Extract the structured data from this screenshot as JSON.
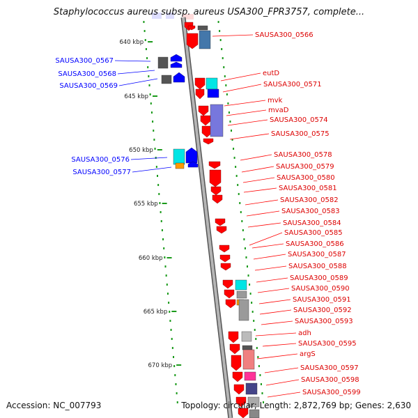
{
  "header": {
    "title": "Staphylococcus aureus subsp. aureus USA300_FPR3757, complete..."
  },
  "footer": {
    "accession": "Accession: NC_007793",
    "topology": "Topology: circular; Length: 2,872,769 bp; Genes: 2,630"
  },
  "colors": {
    "forward": "#ff0000",
    "reverse": "#0000ff",
    "backbone": "#8a8a8a",
    "tick": "#1a9a1a",
    "cyan": "#00e5e5",
    "orange": "#ff9900",
    "purple": "#7777dd",
    "steel": "#4477aa",
    "grey": "#9a9a9a",
    "pink": "#ff3399",
    "salmon": "#f08080",
    "navy": "#444488"
  },
  "scale": {
    "ticks": [
      "640 kbp",
      "645 kbp",
      "650 kbp",
      "655 kbp",
      "660 kbp",
      "665 kbp",
      "670 kbp"
    ]
  },
  "reverse_labels": [
    "SAUSA300_0567",
    "SAUSA300_0568",
    "SAUSA300_0569",
    "SAUSA300_0576",
    "SAUSA300_0577"
  ],
  "forward_labels": [
    "SAUSA300_0566",
    "eutD",
    "SAUSA300_0571",
    "mvk",
    "mvaD",
    "SAUSA300_0574",
    "SAUSA300_0575",
    "SAUSA300_0578",
    "SAUSA300_0579",
    "SAUSA300_0580",
    "SAUSA300_0581",
    "SAUSA300_0582",
    "SAUSA300_0583",
    "SAUSA300_0584",
    "SAUSA300_0585",
    "SAUSA300_0586",
    "SAUSA300_0587",
    "SAUSA300_0588",
    "SAUSA300_0589",
    "SAUSA300_0590",
    "SAUSA300_0591",
    "SAUSA300_0592",
    "SAUSA300_0593",
    "adh",
    "SAUSA300_0595",
    "argS",
    "SAUSA300_0597",
    "SAUSA300_0598",
    "SAUSA300_0599"
  ]
}
